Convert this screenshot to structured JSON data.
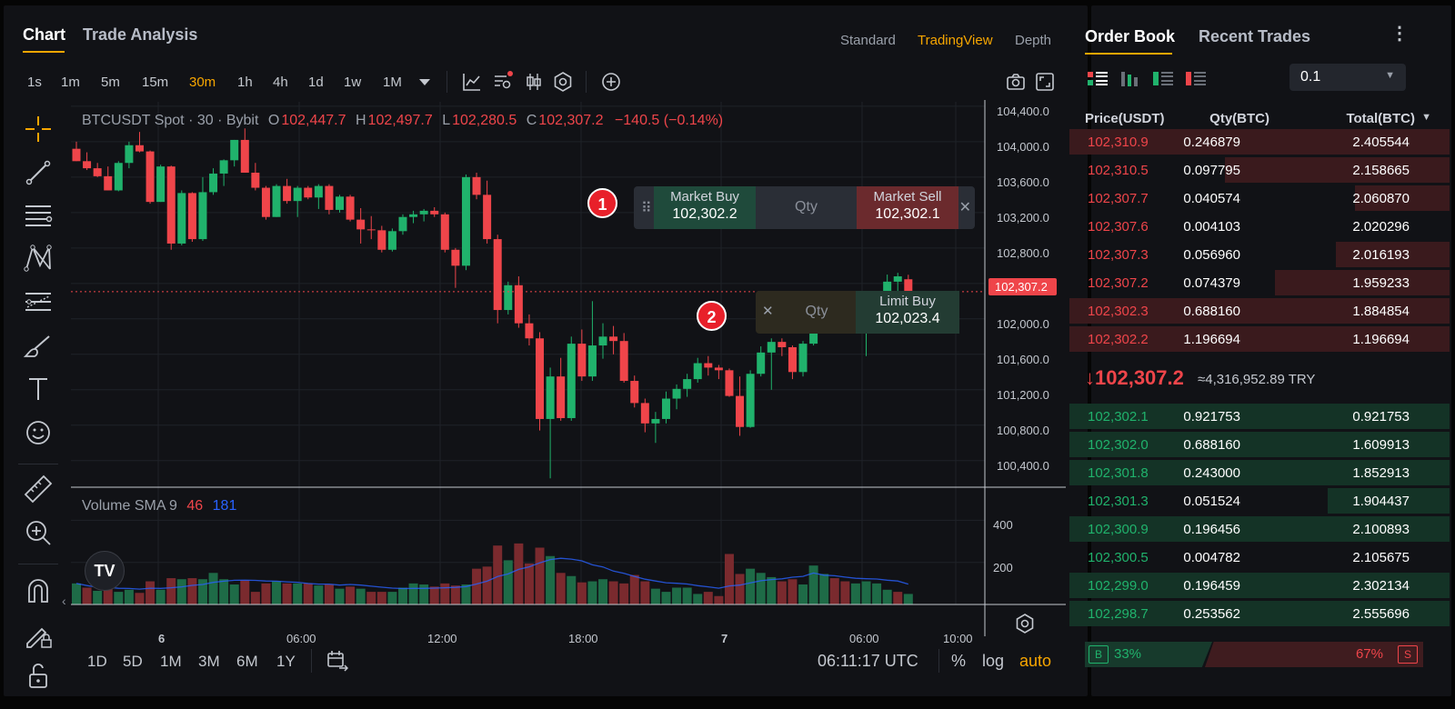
{
  "chart_header": {
    "tabs": [
      "Chart",
      "Trade Analysis"
    ],
    "views": [
      "Standard",
      "TradingView",
      "Depth"
    ],
    "active_view": "TradingView"
  },
  "intervals": [
    "1s",
    "1m",
    "5m",
    "15m",
    "30m",
    "1h",
    "4h",
    "1d",
    "1w",
    "1M"
  ],
  "active_interval": "30m",
  "legend": {
    "symbol": "BTCUSDT Spot · 30 · Bybit",
    "o_label": "O",
    "o": "102,447.7",
    "h_label": "H",
    "h": "102,497.7",
    "l_label": "L",
    "l": "102,280.5",
    "c_label": "C",
    "c": "102,307.2",
    "change": "−140.5 (−0.14%)"
  },
  "volume_legend": {
    "title": "Volume SMA 9",
    "v1": "46",
    "v2": "181"
  },
  "last_price_tag": "102,307.2",
  "trade_widget_1": {
    "badge": "1",
    "buy_label": "Market Buy",
    "buy_price": "102,302.2",
    "qty": "Qty",
    "sell_label": "Market Sell",
    "sell_price": "102,302.1",
    "close": "✕"
  },
  "trade_widget_2": {
    "badge": "2",
    "close": "✕",
    "qty": "Qty",
    "buy_label": "Limit Buy",
    "buy_price": "102,023.4"
  },
  "tv_logo": "TV",
  "bottom_bar": {
    "ranges": [
      "1D",
      "5D",
      "1M",
      "3M",
      "6M",
      "1Y"
    ],
    "utc_time": "06:11:17 UTC",
    "percent": "%",
    "log": "log",
    "auto": "auto"
  },
  "colors": {
    "up": "#20b26c",
    "down": "#ef454a",
    "accent": "#f7a600",
    "sma": "#2962ff"
  },
  "chart_data": {
    "type": "candlestick",
    "symbol": "BTCUSDT",
    "interval": "30",
    "y_ticks": [
      "104,400.0",
      "104,000.0",
      "103,600.0",
      "103,200.0",
      "102,800.0",
      "102,400.0",
      "102,000.0",
      "101,600.0",
      "101,200.0",
      "100,800.0",
      "100,400.0"
    ],
    "y_range": [
      100100,
      104450
    ],
    "volume_ticks": [
      "400",
      "200"
    ],
    "x_ticks": [
      "6",
      "06:00",
      "12:00",
      "18:00",
      "7",
      "06:00",
      "10:00"
    ],
    "candles": [
      [
        103920,
        104000,
        103780,
        103780
      ],
      [
        103780,
        103880,
        103680,
        103700
      ],
      [
        103700,
        103760,
        103600,
        103610
      ],
      [
        103610,
        103720,
        103450,
        103450
      ],
      [
        103450,
        103780,
        103440,
        103760
      ],
      [
        103760,
        104000,
        103700,
        103960
      ],
      [
        103960,
        104110,
        103880,
        103890
      ],
      [
        103890,
        103900,
        103300,
        103320
      ],
      [
        103320,
        103740,
        103320,
        103720
      ],
      [
        103720,
        103730,
        102780,
        102850
      ],
      [
        102850,
        103450,
        102830,
        103420
      ],
      [
        103420,
        103430,
        102870,
        102900
      ],
      [
        102900,
        103600,
        102880,
        103430
      ],
      [
        103430,
        103700,
        103400,
        103640
      ],
      [
        103640,
        103800,
        103500,
        103790
      ],
      [
        103790,
        104020,
        103720,
        104020
      ],
      [
        104020,
        104150,
        103650,
        103650
      ],
      [
        103650,
        103760,
        103450,
        103480
      ],
      [
        103480,
        103500,
        103120,
        103150
      ],
      [
        103150,
        103520,
        103150,
        103500
      ],
      [
        103500,
        103580,
        103300,
        103330
      ],
      [
        103330,
        103500,
        103150,
        103480
      ],
      [
        103480,
        103500,
        103350,
        103370
      ],
      [
        103370,
        103520,
        103240,
        103500
      ],
      [
        103500,
        103520,
        103180,
        103230
      ],
      [
        103230,
        103400,
        103200,
        103380
      ],
      [
        103380,
        103400,
        103100,
        103120
      ],
      [
        103120,
        103250,
        102850,
        103010
      ],
      [
        103010,
        103160,
        102900,
        103000
      ],
      [
        103000,
        103050,
        102750,
        102780
      ],
      [
        102780,
        103020,
        102760,
        102990
      ],
      [
        102990,
        103180,
        102950,
        103150
      ],
      [
        103150,
        103220,
        103080,
        103180
      ],
      [
        103180,
        103240,
        103100,
        103220
      ],
      [
        103220,
        103260,
        103150,
        103180
      ],
      [
        103180,
        103200,
        102750,
        102780
      ],
      [
        102780,
        102800,
        102350,
        102600
      ],
      [
        102600,
        103630,
        102550,
        103600
      ],
      [
        103600,
        103650,
        103350,
        103400
      ],
      [
        103400,
        103560,
        102850,
        102900
      ],
      [
        102900,
        102950,
        101950,
        102100
      ],
      [
        102100,
        102420,
        102050,
        102380
      ],
      [
        102380,
        102480,
        101900,
        101950
      ],
      [
        101950,
        102050,
        101700,
        101780
      ],
      [
        101780,
        101850,
        100740,
        100870
      ],
      [
        100870,
        101450,
        100200,
        101350
      ],
      [
        101350,
        101560,
        100850,
        100880
      ],
      [
        100880,
        101800,
        100850,
        101720
      ],
      [
        101720,
        101880,
        101300,
        101350
      ],
      [
        101350,
        102200,
        101300,
        101700
      ],
      [
        101700,
        101950,
        101550,
        101800
      ],
      [
        101800,
        101920,
        101600,
        101750
      ],
      [
        101750,
        101840,
        101280,
        101300
      ],
      [
        101300,
        101360,
        101000,
        101050
      ],
      [
        101050,
        101100,
        100720,
        100820
      ],
      [
        100820,
        100950,
        100600,
        100870
      ],
      [
        100870,
        101180,
        100820,
        101100
      ],
      [
        101100,
        101260,
        100980,
        101210
      ],
      [
        101210,
        101380,
        101120,
        101320
      ],
      [
        101320,
        101560,
        101280,
        101500
      ],
      [
        101500,
        101580,
        101360,
        101450
      ],
      [
        101450,
        101480,
        101320,
        101420
      ],
      [
        101420,
        101440,
        101120,
        101130
      ],
      [
        101130,
        101350,
        100680,
        100780
      ],
      [
        100780,
        101420,
        100770,
        101380
      ],
      [
        101380,
        101690,
        101350,
        101620
      ],
      [
        101620,
        101780,
        101200,
        101740
      ],
      [
        101740,
        101780,
        101580,
        101680
      ],
      [
        101680,
        101700,
        101320,
        101400
      ],
      [
        101400,
        101750,
        101350,
        101720
      ],
      [
        101720,
        102250,
        101700,
        102180
      ]
    ],
    "extra_candles": [
      [
        102180,
        102230,
        102120,
        102210
      ],
      [
        102210,
        102280,
        102120,
        102150
      ],
      [
        102150,
        102200,
        102030,
        102040
      ],
      [
        102040,
        102080,
        101960,
        102000
      ],
      [
        102000,
        102120,
        101580,
        102050
      ],
      [
        102050,
        102200,
        101950,
        102150
      ],
      [
        102150,
        102500,
        102100,
        102420
      ],
      [
        102420,
        102520,
        102300,
        102480
      ],
      [
        102447,
        102498,
        102280,
        102307
      ]
    ],
    "volumes": [
      100,
      80,
      65,
      80,
      60,
      70,
      55,
      110,
      70,
      125,
      120,
      125,
      120,
      150,
      120,
      95,
      115,
      60,
      100,
      110,
      100,
      100,
      100,
      90,
      95,
      75,
      85,
      75,
      60,
      60,
      60,
      80,
      100,
      95,
      85,
      100,
      90,
      95,
      170,
      180,
      280,
      210,
      290,
      195,
      270,
      230,
      150,
      135,
      105,
      110,
      120,
      110,
      100,
      140,
      110,
      75,
      60,
      80,
      80,
      50,
      60,
      40,
      240,
      145,
      170,
      150,
      130,
      110,
      120,
      95,
      185,
      145,
      125,
      110,
      100,
      110,
      100,
      70,
      60,
      50
    ],
    "volume_up": [
      1,
      0,
      1,
      0,
      1,
      1,
      0,
      0,
      1,
      0,
      1,
      0,
      1,
      1,
      1,
      1,
      0,
      0,
      0,
      1,
      0,
      1,
      0,
      1,
      0,
      1,
      0,
      1,
      0,
      0,
      1,
      1,
      1,
      1,
      0,
      0,
      0,
      1,
      0,
      0,
      0,
      1,
      0,
      0,
      0,
      1,
      0,
      1,
      0,
      1,
      1,
      0,
      0,
      0,
      0,
      1,
      1,
      1,
      1,
      1,
      0,
      0,
      0,
      0,
      1,
      1,
      1,
      0,
      0,
      1,
      1,
      1,
      0,
      0,
      1,
      1,
      1,
      1,
      0,
      1
    ]
  },
  "order_book": {
    "tabs": [
      "Order Book",
      "Recent Trades"
    ],
    "step": "0.1",
    "headers": {
      "price": "Price(USDT)",
      "qty": "Qty(BTC)",
      "total": "Total(BTC)"
    },
    "asks": [
      {
        "price": "102,310.9",
        "qty": "0.246879",
        "total": "2.405544",
        "depth": 1.0
      },
      {
        "price": "102,310.5",
        "qty": "0.097795",
        "total": "2.158665",
        "depth": 0.59
      },
      {
        "price": "102,307.7",
        "qty": "0.040574",
        "total": "2.060870",
        "depth": 0.25
      },
      {
        "price": "102,307.6",
        "qty": "0.004103",
        "total": "2.020296",
        "depth": 0.0
      },
      {
        "price": "102,307.3",
        "qty": "0.056960",
        "total": "2.016193",
        "depth": 0.3
      },
      {
        "price": "102,307.2",
        "qty": "0.074379",
        "total": "1.959233",
        "depth": 0.46
      },
      {
        "price": "102,302.3",
        "qty": "0.688160",
        "total": "1.884854",
        "depth": 1.0
      },
      {
        "price": "102,302.2",
        "qty": "1.196694",
        "total": "1.196694",
        "depth": 1.0
      }
    ],
    "last_price": "102,307.2",
    "fiat_value": "≈4,316,952.89 TRY",
    "bids": [
      {
        "price": "102,302.1",
        "qty": "0.921753",
        "total": "0.921753",
        "depth": 1.0
      },
      {
        "price": "102,302.0",
        "qty": "0.688160",
        "total": "1.609913",
        "depth": 1.0
      },
      {
        "price": "102,301.8",
        "qty": "0.243000",
        "total": "1.852913",
        "depth": 1.0
      },
      {
        "price": "102,301.3",
        "qty": "0.051524",
        "total": "1.904437",
        "depth": 0.32
      },
      {
        "price": "102,300.9",
        "qty": "0.196456",
        "total": "2.100893",
        "depth": 1.0
      },
      {
        "price": "102,300.5",
        "qty": "0.004782",
        "total": "2.105675",
        "depth": 0.0
      },
      {
        "price": "102,299.0",
        "qty": "0.196459",
        "total": "2.302134",
        "depth": 1.0
      },
      {
        "price": "102,298.7",
        "qty": "0.253562",
        "total": "2.555696",
        "depth": 1.0
      }
    ],
    "ratio": {
      "buy_label": "B",
      "buy_pct": "33%",
      "sell_pct": "67%",
      "sell_label": "S"
    }
  }
}
